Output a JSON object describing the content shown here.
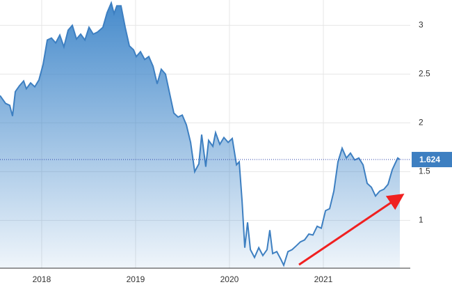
{
  "chart_data": {
    "type": "area",
    "x": [
      2017.556,
      2017.615,
      2017.66,
      2017.689,
      2017.719,
      2017.763,
      2017.808,
      2017.837,
      2017.882,
      2017.926,
      2017.971,
      2018.015,
      2018.06,
      2018.104,
      2018.149,
      2018.193,
      2018.237,
      2018.282,
      2018.326,
      2018.371,
      2018.415,
      2018.46,
      2018.504,
      2018.549,
      2018.593,
      2018.652,
      2018.697,
      2018.741,
      2018.771,
      2018.8,
      2018.845,
      2018.889,
      2018.934,
      2018.978,
      2019.008,
      2019.052,
      2019.097,
      2019.141,
      2019.186,
      2019.23,
      2019.274,
      2019.319,
      2019.363,
      2019.408,
      2019.452,
      2019.497,
      2019.541,
      2019.586,
      2019.63,
      2019.674,
      2019.704,
      2019.748,
      2019.778,
      2019.823,
      2019.852,
      2019.897,
      2019.941,
      2019.986,
      2020.03,
      2020.075,
      2020.104,
      2020.134,
      2020.163,
      2020.193,
      2020.223,
      2020.267,
      2020.312,
      2020.356,
      2020.4,
      2020.43,
      2020.46,
      2020.504,
      2020.548,
      2020.578,
      2020.623,
      2020.667,
      2020.712,
      2020.756,
      2020.8,
      2020.845,
      2020.889,
      2020.934,
      2020.978,
      2021.023,
      2021.067,
      2021.112,
      2021.156,
      2021.2,
      2021.245,
      2021.289,
      2021.334,
      2021.378,
      2021.423,
      2021.467,
      2021.512,
      2021.556,
      2021.6,
      2021.645,
      2021.689,
      2021.734,
      2021.763,
      2021.793,
      2021.815
    ],
    "series": [
      {
        "color": "#3d7fc1",
        "values": [
          2.28,
          2.2,
          2.18,
          2.07,
          2.32,
          2.38,
          2.43,
          2.35,
          2.41,
          2.37,
          2.44,
          2.6,
          2.85,
          2.87,
          2.82,
          2.9,
          2.78,
          2.95,
          3.0,
          2.86,
          2.91,
          2.85,
          2.98,
          2.91,
          2.93,
          2.98,
          3.13,
          3.23,
          3.12,
          3.2,
          3.2,
          2.98,
          2.79,
          2.75,
          2.68,
          2.73,
          2.65,
          2.68,
          2.58,
          2.4,
          2.55,
          2.5,
          2.3,
          2.1,
          2.06,
          2.08,
          1.98,
          1.8,
          1.5,
          1.58,
          1.88,
          1.55,
          1.82,
          1.76,
          1.9,
          1.78,
          1.85,
          1.8,
          1.84,
          1.57,
          1.6,
          1.2,
          0.72,
          0.98,
          0.7,
          0.62,
          0.72,
          0.64,
          0.7,
          0.9,
          0.66,
          0.68,
          0.6,
          0.54,
          0.68,
          0.7,
          0.74,
          0.78,
          0.8,
          0.86,
          0.85,
          0.94,
          0.92,
          1.1,
          1.12,
          1.3,
          1.6,
          1.74,
          1.64,
          1.69,
          1.62,
          1.64,
          1.57,
          1.38,
          1.34,
          1.25,
          1.3,
          1.32,
          1.37,
          1.52,
          1.58,
          1.64,
          1.624
        ]
      }
    ],
    "xlim": [
      2017.556,
      2021.926
    ],
    "xticks": [
      2018,
      2019,
      2020,
      2021
    ],
    "ylim": [
      0.51,
      3.26
    ],
    "yticks": [
      1,
      1.5,
      2,
      2.5,
      3
    ],
    "grid": true
  }
}
